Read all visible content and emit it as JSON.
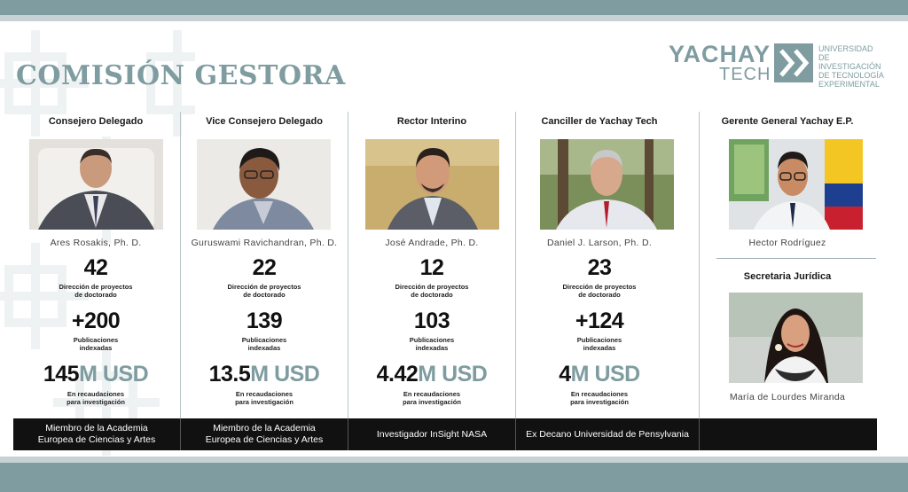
{
  "header": {
    "title": "COMISIÓN GESTORA"
  },
  "logo": {
    "brand_top": "YACHAY",
    "brand_bottom": "TECH",
    "university_lines": [
      "UNIVERSIDAD",
      "DE INVESTIGACIÓN",
      "DE TECNOLOGÍA",
      "EXPERIMENTAL"
    ]
  },
  "members": [
    {
      "role": "Consejero Delegado",
      "name": "Ares Rosakis, Ph. D.",
      "stat1_value": "42",
      "stat1_label": [
        "Dirección de proyectos",
        "de doctorado"
      ],
      "stat2_value": "+200",
      "stat2_label": [
        "Publicaciones",
        "indexadas"
      ],
      "money_number": "145",
      "money_unit": "M USD",
      "money_label": [
        "En recaudaciones",
        "para investigación"
      ],
      "footer": [
        "Miembro de la Academia",
        "Europea de Ciencias y Artes"
      ]
    },
    {
      "role": "Vice Consejero Delegado",
      "name": "Guruswami Ravichandran, Ph. D.",
      "stat1_value": "22",
      "stat1_label": [
        "Dirección de proyectos",
        "de doctorado"
      ],
      "stat2_value": "139",
      "stat2_label": [
        "Publicaciones",
        "indexadas"
      ],
      "money_number": "13.5",
      "money_unit": "M USD",
      "money_label": [
        "En recaudaciones",
        "para investigación"
      ],
      "footer": [
        "Miembro de la Academia",
        "Europea de Ciencias y Artes"
      ]
    },
    {
      "role": "Rector Interino",
      "name": "José Andrade, Ph. D.",
      "stat1_value": "12",
      "stat1_label": [
        "Dirección de proyectos",
        "de doctorado"
      ],
      "stat2_value": "103",
      "stat2_label": [
        "Publicaciones",
        "indexadas"
      ],
      "money_number": "4.42",
      "money_unit": "M USD",
      "money_label": [
        "En recaudaciones",
        "para investigación"
      ],
      "footer": [
        "Investigador InSight NASA"
      ]
    },
    {
      "role": "Canciller de Yachay Tech",
      "name": "Daniel J. Larson, Ph. D.",
      "stat1_value": "23",
      "stat1_label": [
        "Dirección de proyectos",
        "de doctorado"
      ],
      "stat2_value": "+124",
      "stat2_label": [
        "Publicaciones",
        "indexadas"
      ],
      "money_number": "4",
      "money_unit": "M USD",
      "money_label": [
        "En recaudaciones",
        "para investigación"
      ],
      "footer": [
        "Ex Decano Universidad de Pensylvania"
      ]
    }
  ],
  "right_column": {
    "role_top": "Gerente General Yachay E.P.",
    "name_top": "Hector Rodríguez",
    "role_bottom": "Secretaria Jurídica",
    "name_bottom": "María de Lourdes Miranda"
  },
  "colors": {
    "accent": "#7f9ca1",
    "bar": "#111111"
  }
}
